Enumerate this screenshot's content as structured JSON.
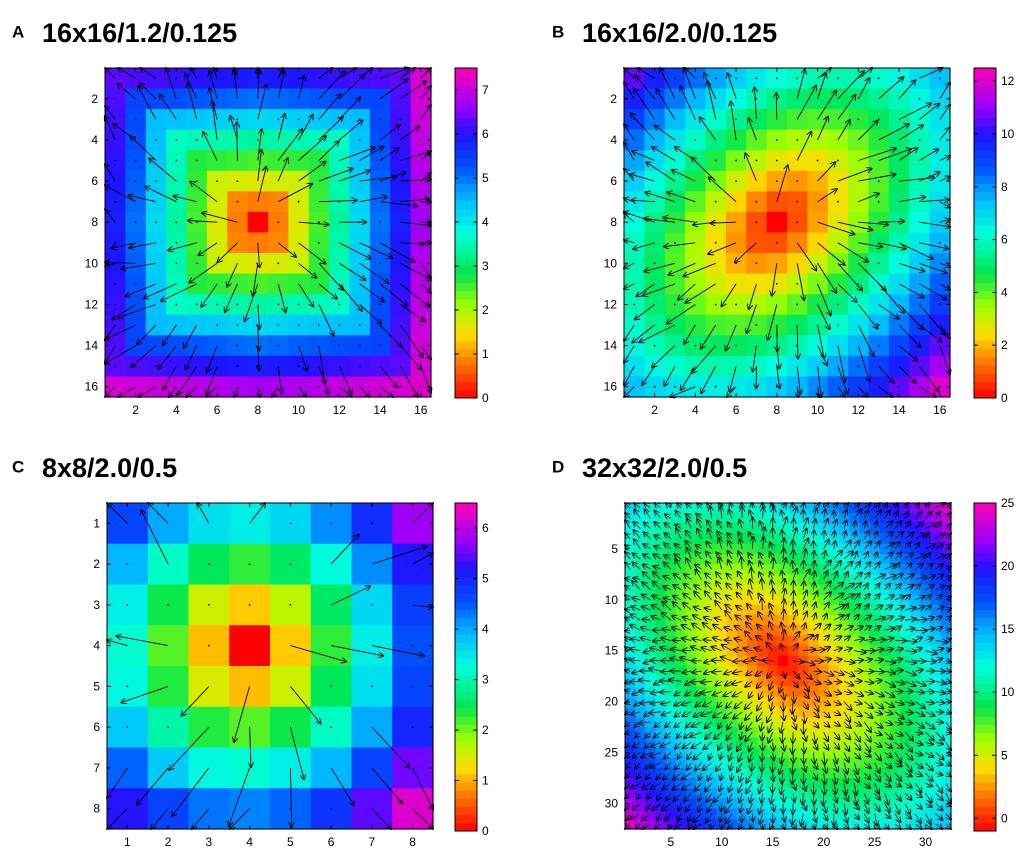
{
  "chart_data": [
    {
      "panel": "A",
      "title": "16x16/1.2/0.125",
      "type": "heatmap",
      "grid_size": 16,
      "peak_cell": [
        8,
        8
      ],
      "colorbar": {
        "min": 0,
        "max": 7.5,
        "ticks": [
          0,
          1,
          2,
          3,
          4,
          5,
          6,
          7
        ]
      },
      "x_ticks": [
        2,
        4,
        6,
        8,
        10,
        12,
        14,
        16
      ],
      "y_ticks": [
        2,
        4,
        6,
        8,
        10,
        12,
        14,
        16
      ],
      "quiver": "outward radial arrows from centre (8,8)"
    },
    {
      "panel": "B",
      "title": "16x16/2.0/0.125",
      "type": "heatmap",
      "grid_size": 16,
      "peak_cell": [
        8,
        8
      ],
      "colorbar": {
        "min": 0,
        "max": 12.5,
        "ticks": [
          0,
          2,
          4,
          6,
          8,
          10,
          12
        ]
      },
      "x_ticks": [
        2,
        4,
        6,
        8,
        10,
        12,
        14,
        16
      ],
      "y_ticks": [
        2,
        4,
        6,
        8,
        10,
        12,
        14,
        16
      ],
      "quiver": "outward radial arrows from centre (8,8)"
    },
    {
      "panel": "C",
      "title": "8x8/2.0/0.5",
      "type": "heatmap",
      "grid_size": 8,
      "peak_cell": [
        4,
        4
      ],
      "colorbar": {
        "min": 0,
        "max": 6.5,
        "ticks": [
          0,
          1,
          2,
          3,
          4,
          5,
          6
        ]
      },
      "x_ticks": [
        1,
        2,
        3,
        4,
        5,
        6,
        7,
        8
      ],
      "y_ticks": [
        1,
        2,
        3,
        4,
        5,
        6,
        7,
        8
      ],
      "quiver": "outward radial arrows from centre (4,4)"
    },
    {
      "panel": "D",
      "title": "32x32/2.0/0.5",
      "type": "heatmap",
      "grid_size": 32,
      "peak_cell": [
        16,
        16
      ],
      "colorbar": {
        "min": -1,
        "max": 25,
        "ticks": [
          0,
          5,
          10,
          15,
          20,
          25
        ]
      },
      "x_ticks": [
        5,
        10,
        15,
        20,
        25,
        30
      ],
      "y_ticks": [
        5,
        10,
        15,
        20,
        25,
        30
      ],
      "quiver": "outward radial arrows from centre (16,16)"
    }
  ]
}
